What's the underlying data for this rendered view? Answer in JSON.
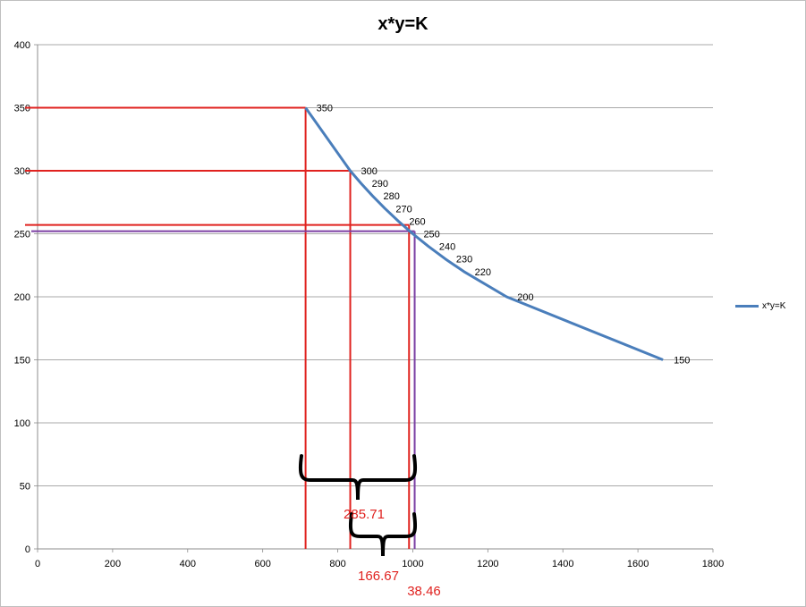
{
  "chart_data": {
    "type": "line",
    "title": "x*y=K",
    "xlim": [
      0,
      1800
    ],
    "ylim": [
      0,
      400
    ],
    "x_ticks": [
      "0",
      "200",
      "400",
      "600",
      "800",
      "1000",
      "1200",
      "1400",
      "1600",
      "1800"
    ],
    "y_ticks": [
      "0",
      "50",
      "100",
      "150",
      "200",
      "250",
      "300",
      "350",
      "400"
    ],
    "grid": "horizontal",
    "legend_position": "right",
    "series": [
      {
        "name": "x*y=K",
        "color": "#4a7ebb",
        "points": [
          {
            "x": 714.29,
            "y": 350,
            "label": "350"
          },
          {
            "x": 833.33,
            "y": 300,
            "label": "300"
          },
          {
            "x": 862.07,
            "y": 290,
            "label": "290"
          },
          {
            "x": 892.86,
            "y": 280,
            "label": "280"
          },
          {
            "x": 925.93,
            "y": 270,
            "label": "270"
          },
          {
            "x": 961.54,
            "y": 260,
            "label": "260"
          },
          {
            "x": 1000,
            "y": 250,
            "label": "250"
          },
          {
            "x": 1041.67,
            "y": 240,
            "label": "240"
          },
          {
            "x": 1086.96,
            "y": 230,
            "label": "230"
          },
          {
            "x": 1136.36,
            "y": 220,
            "label": "220"
          },
          {
            "x": 1250,
            "y": 200,
            "label": "200"
          },
          {
            "x": 1666.67,
            "y": 150,
            "label": "150"
          }
        ]
      }
    ],
    "guide_lines": {
      "red": [
        {
          "x": 714.29,
          "y": 350
        },
        {
          "x": 833.33,
          "y": 300
        },
        {
          "x": 990,
          "y": 257
        }
      ],
      "purple": [
        {
          "x": 1005,
          "y": 252
        }
      ],
      "red_color": "#e0221f",
      "purple_color": "#7b3fa3"
    },
    "annotations": [
      {
        "text": "285.71",
        "from_x": 714.29,
        "to_x": 1000
      },
      {
        "text": "166.67",
        "from_x": 833.33,
        "to_x": 1000
      },
      {
        "text": "38.46",
        "from_x": 961.54,
        "to_x": 1000
      }
    ]
  }
}
